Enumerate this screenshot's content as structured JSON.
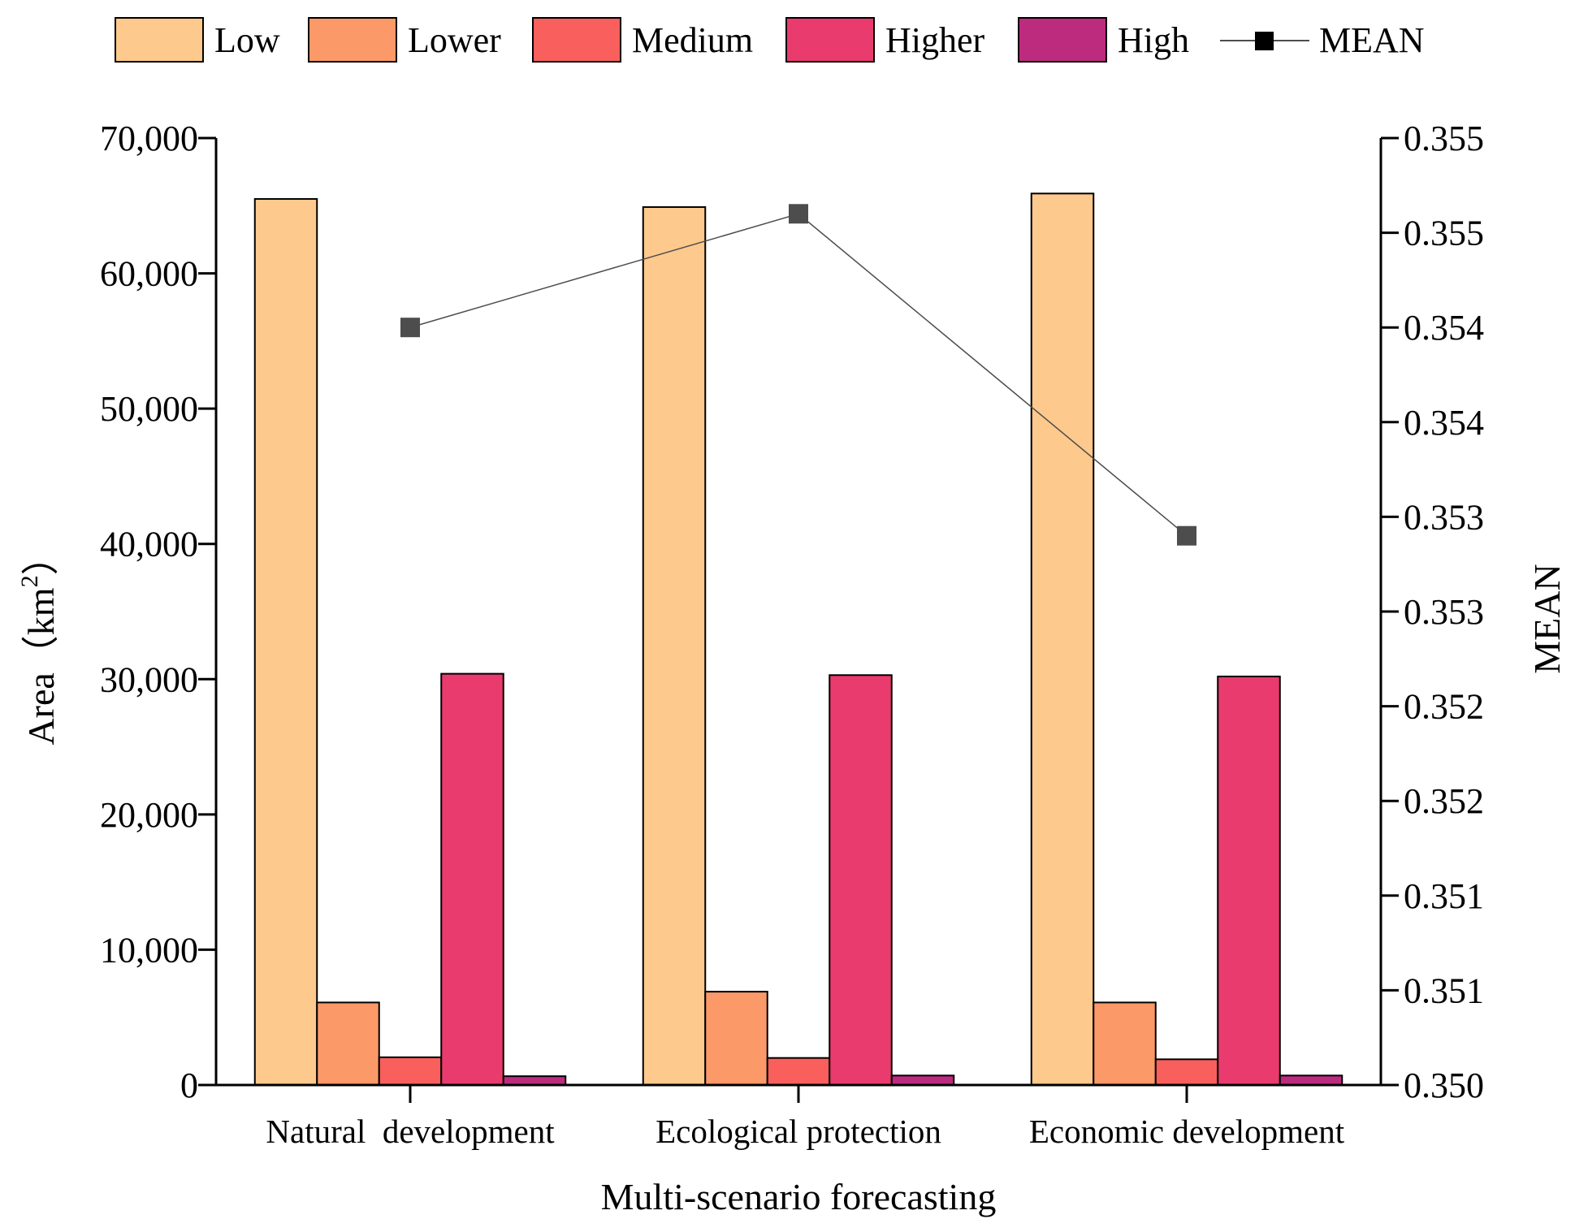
{
  "chart_data": {
    "type": "bar",
    "xlabel": "Multi-scenario forecasting",
    "ylabel": "Area（km²）",
    "ylabel_parts": {
      "main": "Area（km",
      "sup": "2",
      "end": "）"
    },
    "y2label": "MEAN",
    "categories": [
      "Natural  development",
      "Ecological protection",
      "Economic development"
    ],
    "ylim": [
      0,
      70000
    ],
    "yticks": [
      0,
      10000,
      20000,
      30000,
      40000,
      50000,
      60000,
      70000
    ],
    "ytick_labels": [
      "0",
      "10,000",
      "20,000",
      "30,000",
      "40,000",
      "50,000",
      "60,000",
      "70,000"
    ],
    "y2lim": [
      0.35,
      0.355
    ],
    "y2ticks": [
      0.35,
      0.3505,
      0.351,
      0.3515,
      0.352,
      0.3525,
      0.353,
      0.3535,
      0.354,
      0.3545,
      0.355
    ],
    "y2tick_labels": [
      "0.350",
      "0.351",
      "0.351",
      "0.352",
      "0.352",
      "0.353",
      "0.353",
      "0.354",
      "0.354",
      "0.355",
      "0.355"
    ],
    "series": [
      {
        "name": "Low",
        "color": "#fdc98c",
        "values": [
          65500,
          64900,
          65900
        ]
      },
      {
        "name": "Lower",
        "color": "#fb9968",
        "values": [
          6100,
          6900,
          6100
        ]
      },
      {
        "name": "Medium",
        "color": "#f95f5c",
        "values": [
          2050,
          2000,
          1900
        ]
      },
      {
        "name": "Higher",
        "color": "#e93b6e",
        "values": [
          30400,
          30300,
          30200
        ]
      },
      {
        "name": "High",
        "color": "#bd2b7f",
        "values": [
          650,
          700,
          700
        ]
      }
    ],
    "line_series": {
      "name": "MEAN",
      "axis": "right",
      "color": "#4d4d4d",
      "marker": "square",
      "values": [
        0.354,
        0.3546,
        0.3529
      ]
    },
    "legend_position": "top"
  }
}
